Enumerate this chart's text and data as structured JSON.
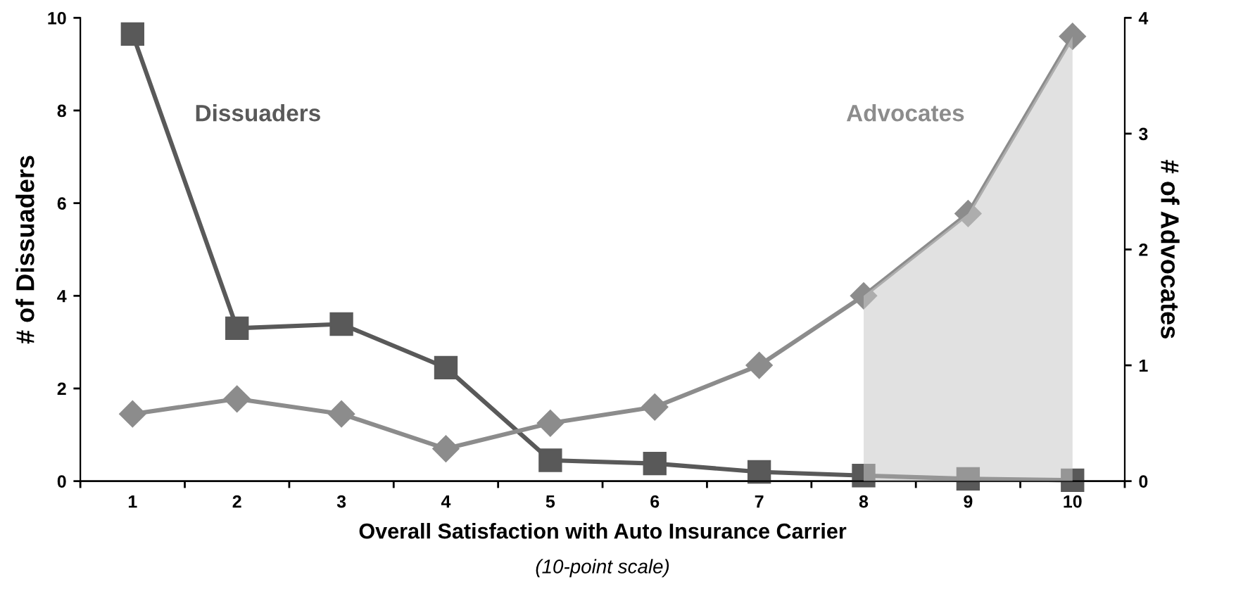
{
  "chart_data": {
    "type": "line",
    "xlabel": "Overall Satisfaction with Auto Insurance Carrier",
    "subtitle": "(10-point scale)",
    "ylabel": "# of Dissuaders",
    "y2label": "# of Advocates",
    "x": [
      1,
      2,
      3,
      4,
      5,
      6,
      7,
      8,
      9,
      10
    ],
    "xlim": [
      0.5,
      10.5
    ],
    "xticks": [
      {
        "value": 0.5,
        "label": null
      },
      1,
      {
        "value": 1.5,
        "label": null
      },
      2,
      {
        "value": 2.5,
        "label": null
      },
      3,
      {
        "value": 3.5,
        "label": null
      },
      4,
      {
        "value": 4.5,
        "label": null
      },
      5,
      {
        "value": 5.5,
        "label": null
      },
      6,
      {
        "value": 6.5,
        "label": null
      },
      7,
      {
        "value": 7.5,
        "label": null
      },
      8,
      {
        "value": 8.5,
        "label": null
      },
      9,
      {
        "value": 9.5,
        "label": null
      },
      10,
      {
        "value": 10.5,
        "label": null
      }
    ],
    "ylim": [
      0,
      10
    ],
    "yticks": [
      0,
      2,
      4,
      6,
      8,
      10
    ],
    "y2lim": [
      0,
      4
    ],
    "y2ticks": [
      0,
      1,
      2,
      3,
      4
    ],
    "grid": false,
    "legend": false,
    "line_style": "solid",
    "series": [
      {
        "name": "Dissuaders",
        "color": "#595959",
        "marker": "square",
        "values": [
          9.65,
          3.3,
          3.39,
          2.45,
          0.45,
          0.38,
          0.2,
          0.12,
          0.05,
          0.02
        ]
      },
      {
        "name": "Advocates",
        "color": "#8c8c8c",
        "marker": "diamond",
        "axis": "y2",
        "values": [
          0.58,
          0.71,
          0.58,
          0.28,
          0.5,
          0.64,
          1.0,
          1.6,
          2.31,
          3.84
        ]
      },
      {
        "type": "area",
        "color": "#c8c8c8",
        "axis": "y2",
        "x": [
          8,
          9,
          10
        ],
        "values": [
          1.6,
          2.31,
          3.84
        ]
      }
    ]
  }
}
